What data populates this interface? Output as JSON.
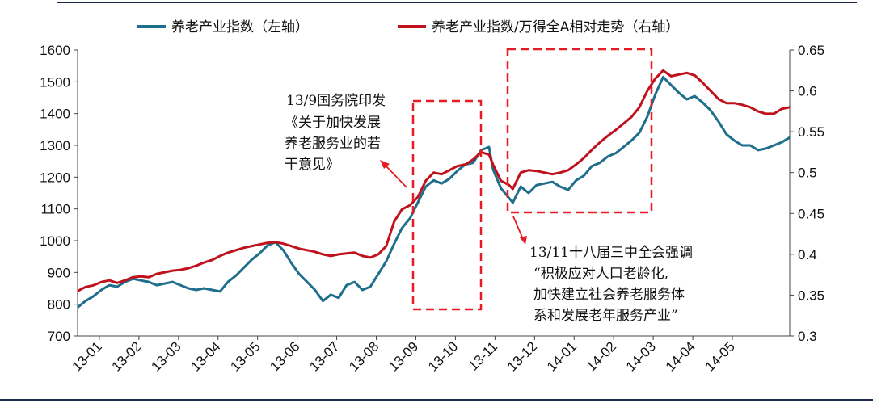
{
  "chart_data": {
    "type": "line",
    "legend": [
      "养老产业指数（左轴）",
      "养老产业指数/万得全A相对走势（右轴）"
    ],
    "y_left": {
      "min": 700,
      "max": 1600,
      "ticks": [
        "700",
        "800",
        "900",
        "1000",
        "1100",
        "1200",
        "1300",
        "1400",
        "1500",
        "1600"
      ]
    },
    "y_right": {
      "min": 0.3,
      "max": 0.65,
      "ticks": [
        "0.3",
        "0.35",
        "0.4",
        "0.45",
        "0.5",
        "0.55",
        "0.6",
        "0.65"
      ]
    },
    "x_ticks": [
      "13-01",
      "13-02",
      "13-03",
      "13-04",
      "13-05",
      "13-06",
      "13-07",
      "13-08",
      "13-09",
      "13-10",
      "13-11",
      "13-12",
      "14-01",
      "14-02",
      "14-03",
      "14-04",
      "14-05"
    ],
    "series": [
      {
        "name": "养老产业指数（左轴）",
        "axis": "left",
        "color": "#1f6e8c",
        "points": [
          [
            0.0,
            790
          ],
          [
            0.2,
            810
          ],
          [
            0.4,
            825
          ],
          [
            0.6,
            845
          ],
          [
            0.8,
            860
          ],
          [
            1.0,
            855
          ],
          [
            1.2,
            870
          ],
          [
            1.4,
            880
          ],
          [
            1.6,
            875
          ],
          [
            1.8,
            870
          ],
          [
            2.0,
            860
          ],
          [
            2.2,
            865
          ],
          [
            2.4,
            870
          ],
          [
            2.6,
            860
          ],
          [
            2.8,
            850
          ],
          [
            3.0,
            845
          ],
          [
            3.2,
            850
          ],
          [
            3.4,
            845
          ],
          [
            3.6,
            840
          ],
          [
            3.8,
            870
          ],
          [
            4.0,
            890
          ],
          [
            4.2,
            915
          ],
          [
            4.4,
            940
          ],
          [
            4.6,
            960
          ],
          [
            4.8,
            985
          ],
          [
            5.0,
            995
          ],
          [
            5.2,
            970
          ],
          [
            5.4,
            930
          ],
          [
            5.6,
            895
          ],
          [
            5.8,
            870
          ],
          [
            6.0,
            845
          ],
          [
            6.2,
            810
          ],
          [
            6.4,
            830
          ],
          [
            6.6,
            820
          ],
          [
            6.8,
            860
          ],
          [
            7.0,
            870
          ],
          [
            7.2,
            845
          ],
          [
            7.4,
            855
          ],
          [
            7.6,
            895
          ],
          [
            7.8,
            935
          ],
          [
            8.0,
            990
          ],
          [
            8.2,
            1040
          ],
          [
            8.4,
            1070
          ],
          [
            8.6,
            1120
          ],
          [
            8.8,
            1170
          ],
          [
            9.0,
            1190
          ],
          [
            9.2,
            1180
          ],
          [
            9.4,
            1195
          ],
          [
            9.6,
            1220
          ],
          [
            9.8,
            1240
          ],
          [
            10.0,
            1245
          ],
          [
            10.2,
            1285
          ],
          [
            10.4,
            1295
          ],
          [
            10.5,
            1225
          ],
          [
            10.7,
            1165
          ],
          [
            10.9,
            1135
          ],
          [
            11.0,
            1120
          ],
          [
            11.2,
            1170
          ],
          [
            11.4,
            1150
          ],
          [
            11.6,
            1175
          ],
          [
            11.8,
            1180
          ],
          [
            12.0,
            1185
          ],
          [
            12.2,
            1170
          ],
          [
            12.4,
            1160
          ],
          [
            12.6,
            1190
          ],
          [
            12.8,
            1205
          ],
          [
            13.0,
            1235
          ],
          [
            13.2,
            1245
          ],
          [
            13.4,
            1265
          ],
          [
            13.6,
            1275
          ],
          [
            13.8,
            1295
          ],
          [
            14.0,
            1315
          ],
          [
            14.2,
            1340
          ],
          [
            14.4,
            1390
          ],
          [
            14.6,
            1460
          ],
          [
            14.8,
            1515
          ],
          [
            15.0,
            1490
          ],
          [
            15.2,
            1465
          ],
          [
            15.4,
            1445
          ],
          [
            15.6,
            1455
          ],
          [
            15.8,
            1435
          ],
          [
            16.0,
            1410
          ],
          [
            16.2,
            1375
          ],
          [
            16.4,
            1335
          ],
          [
            16.6,
            1315
          ],
          [
            16.8,
            1300
          ],
          [
            17.0,
            1300
          ],
          [
            17.2,
            1285
          ],
          [
            17.4,
            1290
          ],
          [
            17.6,
            1300
          ],
          [
            17.8,
            1310
          ],
          [
            18.0,
            1325
          ]
        ]
      },
      {
        "name": "养老产业指数/万得全A相对走势（右轴）",
        "axis": "right",
        "color": "#c0121d",
        "points": [
          [
            0.0,
            0.355
          ],
          [
            0.2,
            0.36
          ],
          [
            0.4,
            0.362
          ],
          [
            0.6,
            0.366
          ],
          [
            0.8,
            0.368
          ],
          [
            1.0,
            0.365
          ],
          [
            1.2,
            0.368
          ],
          [
            1.4,
            0.372
          ],
          [
            1.6,
            0.373
          ],
          [
            1.8,
            0.372
          ],
          [
            2.0,
            0.376
          ],
          [
            2.2,
            0.378
          ],
          [
            2.4,
            0.38
          ],
          [
            2.6,
            0.381
          ],
          [
            2.8,
            0.383
          ],
          [
            3.0,
            0.386
          ],
          [
            3.2,
            0.39
          ],
          [
            3.4,
            0.393
          ],
          [
            3.6,
            0.398
          ],
          [
            3.8,
            0.402
          ],
          [
            4.0,
            0.405
          ],
          [
            4.2,
            0.408
          ],
          [
            4.4,
            0.41
          ],
          [
            4.6,
            0.412
          ],
          [
            4.8,
            0.414
          ],
          [
            5.0,
            0.415
          ],
          [
            5.2,
            0.413
          ],
          [
            5.4,
            0.41
          ],
          [
            5.6,
            0.407
          ],
          [
            5.8,
            0.405
          ],
          [
            6.0,
            0.403
          ],
          [
            6.2,
            0.4
          ],
          [
            6.4,
            0.398
          ],
          [
            6.6,
            0.4
          ],
          [
            6.8,
            0.401
          ],
          [
            7.0,
            0.402
          ],
          [
            7.2,
            0.398
          ],
          [
            7.4,
            0.396
          ],
          [
            7.6,
            0.4
          ],
          [
            7.8,
            0.41
          ],
          [
            8.0,
            0.44
          ],
          [
            8.2,
            0.455
          ],
          [
            8.4,
            0.46
          ],
          [
            8.6,
            0.47
          ],
          [
            8.8,
            0.49
          ],
          [
            9.0,
            0.5
          ],
          [
            9.2,
            0.498
          ],
          [
            9.4,
            0.503
          ],
          [
            9.6,
            0.508
          ],
          [
            9.8,
            0.51
          ],
          [
            10.0,
            0.516
          ],
          [
            10.2,
            0.525
          ],
          [
            10.4,
            0.522
          ],
          [
            10.5,
            0.51
          ],
          [
            10.7,
            0.49
          ],
          [
            10.9,
            0.485
          ],
          [
            11.0,
            0.48
          ],
          [
            11.2,
            0.5
          ],
          [
            11.4,
            0.503
          ],
          [
            11.6,
            0.502
          ],
          [
            11.8,
            0.5
          ],
          [
            12.0,
            0.498
          ],
          [
            12.2,
            0.5
          ],
          [
            12.4,
            0.503
          ],
          [
            12.6,
            0.51
          ],
          [
            12.8,
            0.518
          ],
          [
            13.0,
            0.528
          ],
          [
            13.2,
            0.537
          ],
          [
            13.4,
            0.545
          ],
          [
            13.6,
            0.552
          ],
          [
            13.8,
            0.56
          ],
          [
            14.0,
            0.568
          ],
          [
            14.2,
            0.58
          ],
          [
            14.4,
            0.6
          ],
          [
            14.6,
            0.615
          ],
          [
            14.8,
            0.625
          ],
          [
            15.0,
            0.618
          ],
          [
            15.2,
            0.62
          ],
          [
            15.4,
            0.622
          ],
          [
            15.6,
            0.619
          ],
          [
            15.8,
            0.61
          ],
          [
            16.0,
            0.6
          ],
          [
            16.2,
            0.59
          ],
          [
            16.4,
            0.585
          ],
          [
            16.6,
            0.585
          ],
          [
            16.8,
            0.583
          ],
          [
            17.0,
            0.58
          ],
          [
            17.2,
            0.575
          ],
          [
            17.4,
            0.572
          ],
          [
            17.6,
            0.572
          ],
          [
            17.8,
            0.578
          ],
          [
            18.0,
            0.58
          ]
        ]
      }
    ],
    "annotations": [
      {
        "lines": [
          "13/9国务院印发",
          "《关于加快发展",
          "养老服务业的若",
          "干意见》"
        ]
      },
      {
        "lines": [
          "13/11十八届三中全会强调",
          "“积极应对人口老龄化,",
          "加快建立社会养老服务体",
          "系和发展老年服务产业”"
        ]
      }
    ]
  }
}
